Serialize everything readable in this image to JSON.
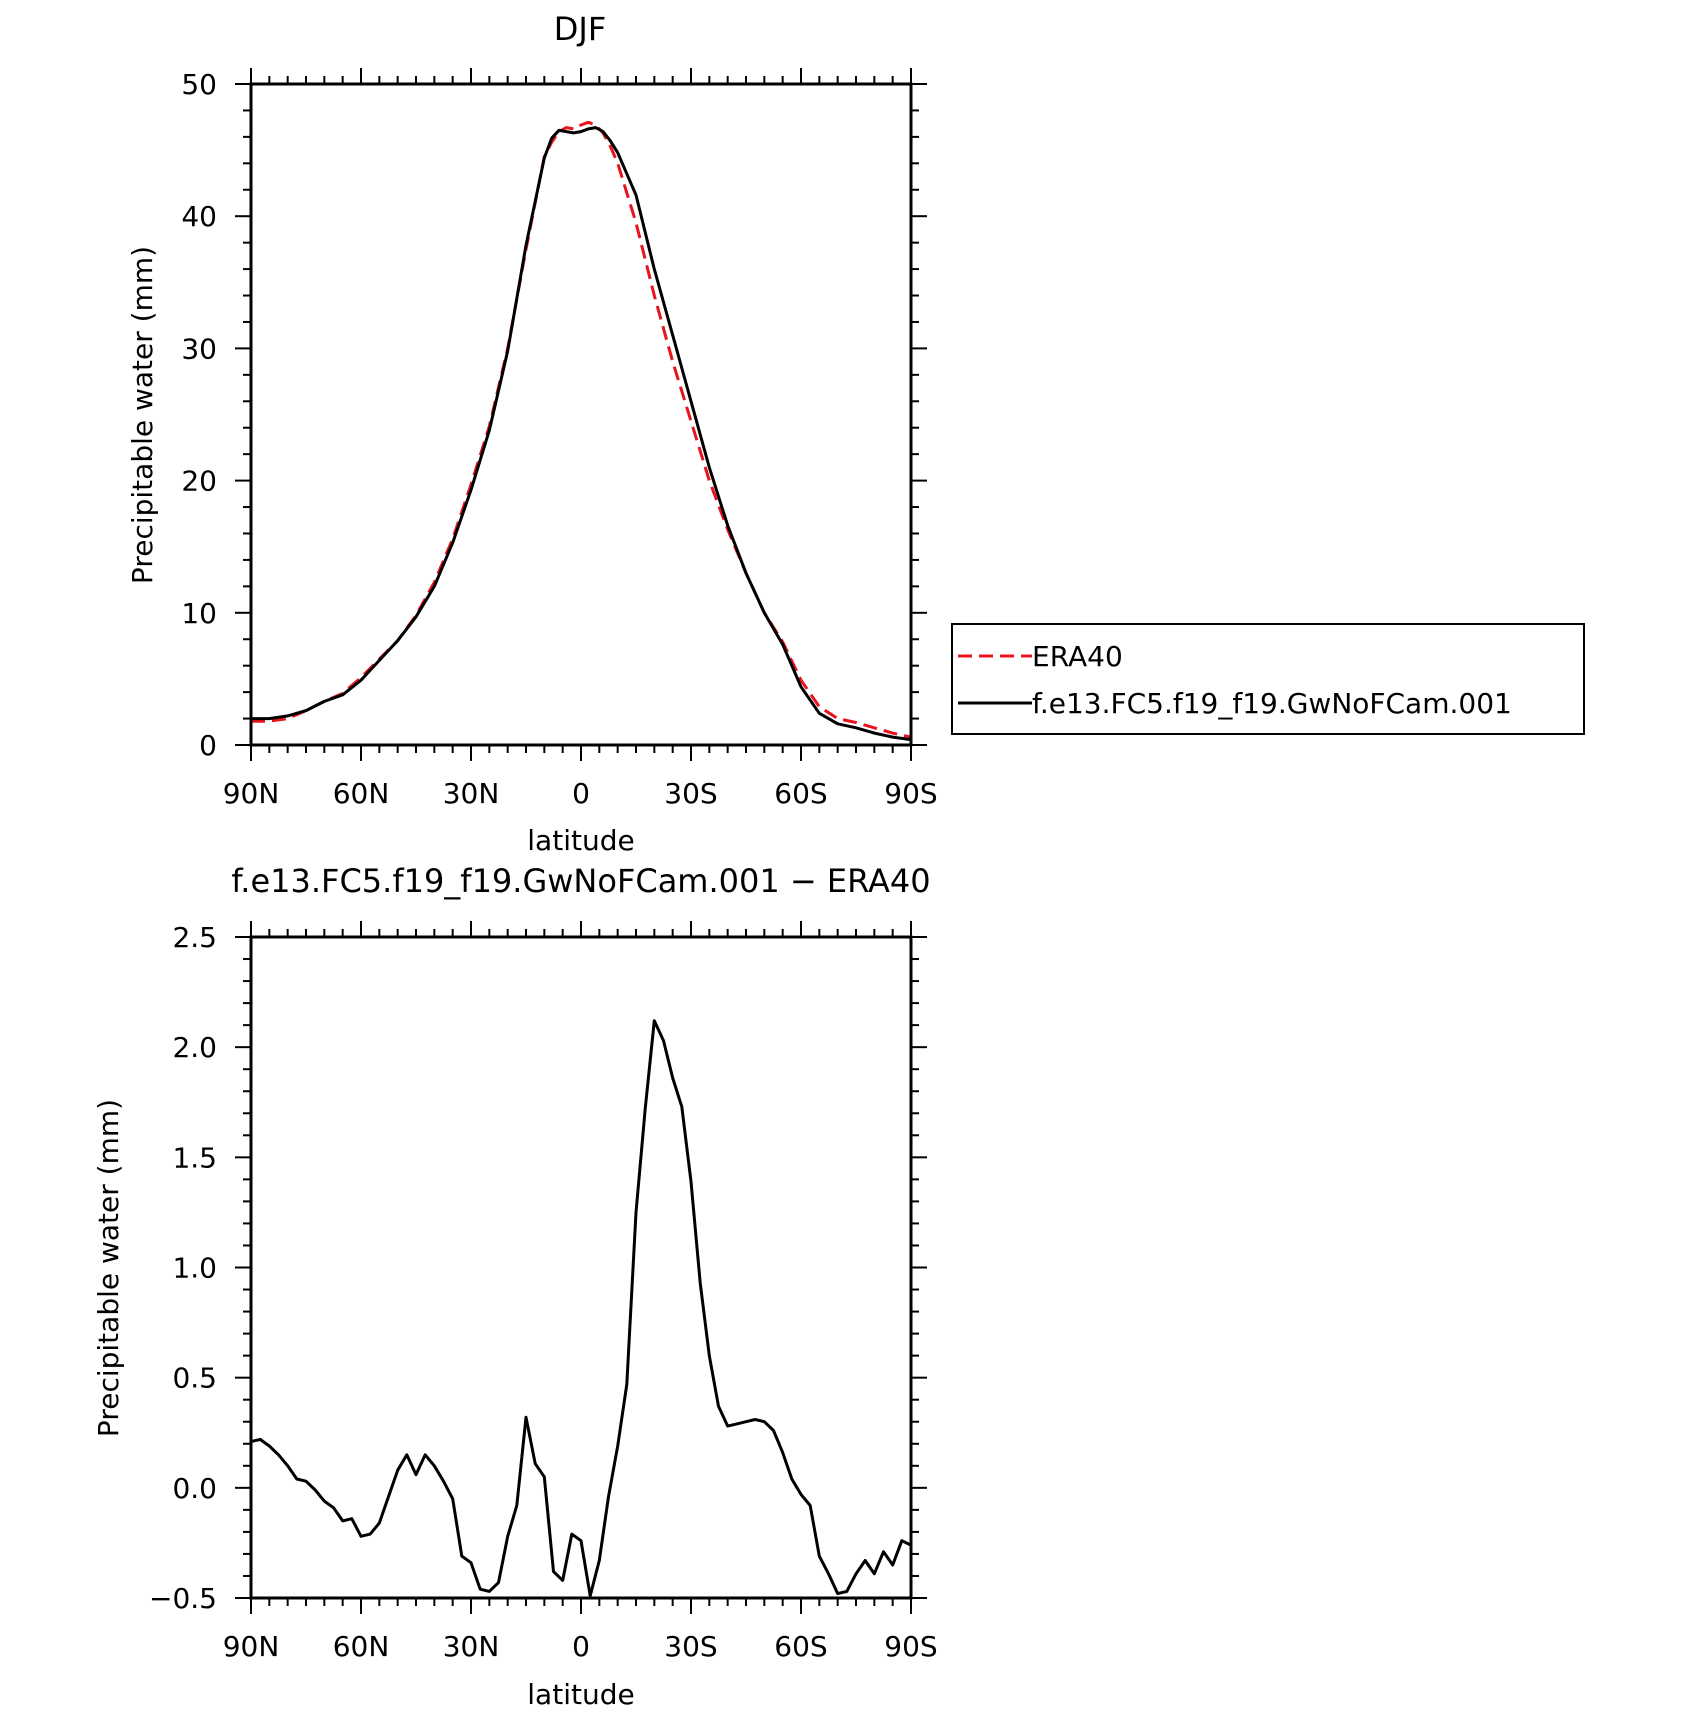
{
  "chart_data": [
    {
      "type": "line",
      "title": "DJF",
      "xlabel": "latitude",
      "ylabel": "Precipitable water (mm)",
      "xlim": [
        90,
        -90
      ],
      "ylim": [
        0,
        50
      ],
      "xticks": [
        90,
        60,
        30,
        0,
        -30,
        -60,
        -90
      ],
      "xtick_labels": [
        "90N",
        "60N",
        "30N",
        "0",
        "30S",
        "60S",
        "90S"
      ],
      "yticks": [
        0,
        10,
        20,
        30,
        40,
        50
      ],
      "ytick_labels": [
        "0",
        "10",
        "20",
        "30",
        "40",
        "50"
      ],
      "legend": {
        "position": "right"
      },
      "series": [
        {
          "name": "ERA40",
          "color": "#e8141e",
          "style": "dashed",
          "x": [
            90,
            85,
            80,
            75,
            70,
            65,
            60,
            55,
            50,
            45,
            40,
            35,
            30,
            25,
            20,
            15,
            10,
            8,
            6,
            4,
            2,
            0,
            -2,
            -4,
            -6,
            -8,
            -10,
            -15,
            -20,
            -25,
            -30,
            -35,
            -40,
            -45,
            -50,
            -55,
            -60,
            -65,
            -70,
            -75,
            -80,
            -85,
            -90
          ],
          "values": [
            1.8,
            1.8,
            2.0,
            2.6,
            3.3,
            3.9,
            5.1,
            6.5,
            7.9,
            9.8,
            12.3,
            15.6,
            19.7,
            24.1,
            30.0,
            37.5,
            44.5,
            45.6,
            46.4,
            46.7,
            46.6,
            46.9,
            47.1,
            46.9,
            46.3,
            45.3,
            44.0,
            39.5,
            34.0,
            29.0,
            24.5,
            20.0,
            16.3,
            13.0,
            10.0,
            7.8,
            4.9,
            2.9,
            2.0,
            1.7,
            1.3,
            0.9,
            0.6
          ]
        },
        {
          "name": "f.e13.FC5.f19_f19.GwNoFCam.001",
          "color": "#000000",
          "style": "solid",
          "x": [
            90,
            85,
            80,
            75,
            70,
            65,
            60,
            55,
            50,
            45,
            40,
            35,
            30,
            25,
            20,
            15,
            10,
            8,
            6,
            4,
            2,
            0,
            -2,
            -4,
            -6,
            -8,
            -10,
            -15,
            -20,
            -25,
            -30,
            -35,
            -40,
            -45,
            -50,
            -55,
            -60,
            -65,
            -70,
            -75,
            -80,
            -85,
            -90
          ],
          "values": [
            2.0,
            2.0,
            2.2,
            2.6,
            3.3,
            3.8,
            4.9,
            6.4,
            7.9,
            9.7,
            12.0,
            15.3,
            19.3,
            23.8,
            29.8,
            37.8,
            44.4,
            45.9,
            46.5,
            46.4,
            46.3,
            46.4,
            46.6,
            46.7,
            46.4,
            45.7,
            44.8,
            41.6,
            36.0,
            31.0,
            26.0,
            21.0,
            16.6,
            13.0,
            10.0,
            7.6,
            4.4,
            2.4,
            1.6,
            1.3,
            0.9,
            0.6,
            0.4
          ]
        }
      ]
    },
    {
      "type": "line",
      "title": "f.e13.FC5.f19_f19.GwNoFCam.001 − ERA40",
      "xlabel": "latitude",
      "ylabel": "Precipitable water (mm)",
      "xlim": [
        90,
        -90
      ],
      "ylim": [
        -0.5,
        2.5
      ],
      "xticks": [
        90,
        60,
        30,
        0,
        -30,
        -60,
        -90
      ],
      "xtick_labels": [
        "90N",
        "60N",
        "30N",
        "0",
        "30S",
        "60S",
        "90S"
      ],
      "yticks": [
        -0.5,
        0.0,
        0.5,
        1.0,
        1.5,
        2.0,
        2.5
      ],
      "ytick_labels": [
        "−0.5",
        "0.0",
        "0.5",
        "1.0",
        "1.5",
        "2.0",
        "2.5"
      ],
      "series": [
        {
          "color": "#000000",
          "style": "solid",
          "x": [
            90.0,
            87.5,
            85.0,
            82.5,
            80.0,
            77.5,
            75.0,
            72.5,
            70.0,
            67.5,
            65.0,
            62.5,
            60.0,
            57.5,
            55.0,
            52.5,
            50.0,
            47.5,
            45.0,
            42.5,
            40.0,
            37.5,
            35.0,
            32.5,
            30.0,
            27.5,
            25.0,
            22.5,
            20.0,
            17.5,
            15.0,
            12.5,
            10.0,
            7.5,
            5.0,
            2.5,
            0.0,
            -2.5,
            -5.0,
            -7.5,
            -10.0,
            -12.5,
            -15.0,
            -17.5,
            -20.0,
            -22.5,
            -25.0,
            -27.5,
            -30.0,
            -32.5,
            -35.0,
            -37.5,
            -40.0,
            -42.5,
            -45.0,
            -47.5,
            -50.0,
            -52.5,
            -55.0,
            -57.5,
            -60.0,
            -62.5,
            -65.0,
            -67.5,
            -70.0,
            -72.5,
            -75.0,
            -77.5,
            -80.0,
            -82.5,
            -85.0,
            -87.5,
            -90.0
          ],
          "values": [
            0.21,
            0.22,
            0.19,
            0.15,
            0.1,
            0.04,
            0.03,
            -0.01,
            -0.06,
            -0.09,
            -0.15,
            -0.14,
            -0.22,
            -0.21,
            -0.16,
            -0.04,
            0.08,
            0.15,
            0.06,
            0.15,
            0.1,
            0.03,
            -0.05,
            -0.31,
            -0.34,
            -0.46,
            -0.47,
            -0.43,
            -0.22,
            -0.08,
            0.32,
            0.11,
            0.05,
            -0.38,
            -0.42,
            -0.21,
            -0.24,
            -0.49,
            -0.33,
            -0.04,
            0.19,
            0.47,
            1.25,
            1.72,
            2.12,
            2.03,
            1.86,
            1.73,
            1.39,
            0.93,
            0.6,
            0.37,
            0.28,
            0.29,
            0.3,
            0.31,
            0.3,
            0.26,
            0.16,
            0.04,
            -0.03,
            -0.08,
            -0.31,
            -0.39,
            -0.48,
            -0.47,
            -0.39,
            -0.33,
            -0.39,
            -0.29,
            -0.35,
            -0.24,
            -0.26
          ]
        }
      ]
    }
  ]
}
